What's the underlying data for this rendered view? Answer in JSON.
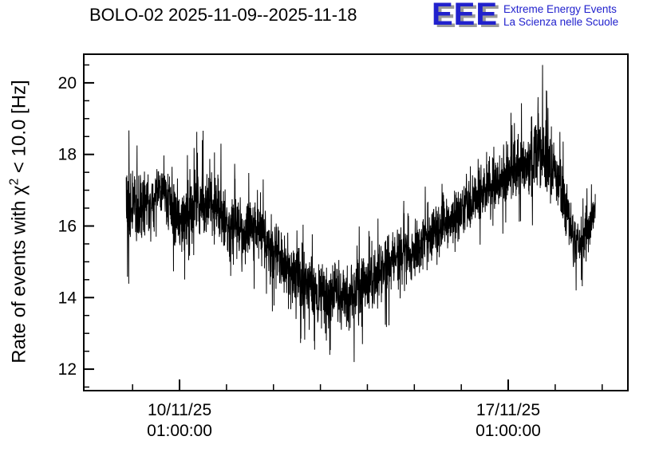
{
  "logo": {
    "acronym": "EEE",
    "line1": "Extreme Energy Events",
    "line2": "La Scienza nelle Scuole",
    "color": "#2121cd"
  },
  "chart_data": {
    "type": "line",
    "title": "BOLO-02 2025-11-09--2025-11-18",
    "ylabel_prefix": "Rate of events with χ",
    "ylabel_sup": "2",
    "ylabel_suffix": " < 10.0 [Hz]",
    "ylim": [
      11.4,
      20.8
    ],
    "y_major_ticks": [
      12,
      14,
      16,
      18,
      20
    ],
    "y_minor_step": 0.5,
    "x_major_ticks": [
      {
        "pos": 0.176,
        "date": "10/11/25",
        "time": "01:00:00"
      },
      {
        "pos": 0.78,
        "date": "17/11/25",
        "time": "01:00:00"
      }
    ],
    "x_minor_spacing": 0.0863,
    "series_color": "#000000",
    "grid": false,
    "legend": "none",
    "data_span": [
      0.078,
      0.94
    ],
    "n_points": 2600,
    "trend": [
      {
        "t": 0.078,
        "mean": 16.6,
        "spread": 1.4
      },
      {
        "t": 0.105,
        "mean": 16.3,
        "spread": 1.3
      },
      {
        "t": 0.14,
        "mean": 17.0,
        "spread": 1.0
      },
      {
        "t": 0.175,
        "mean": 16.2,
        "spread": 1.2
      },
      {
        "t": 0.215,
        "mean": 16.7,
        "spread": 1.3
      },
      {
        "t": 0.255,
        "mean": 16.3,
        "spread": 1.1
      },
      {
        "t": 0.29,
        "mean": 15.8,
        "spread": 1.1
      },
      {
        "t": 0.32,
        "mean": 15.9,
        "spread": 1.0
      },
      {
        "t": 0.355,
        "mean": 15.1,
        "spread": 1.1
      },
      {
        "t": 0.395,
        "mean": 14.5,
        "spread": 1.2
      },
      {
        "t": 0.445,
        "mean": 14.1,
        "spread": 1.2
      },
      {
        "t": 0.495,
        "mean": 14.1,
        "spread": 1.2
      },
      {
        "t": 0.54,
        "mean": 14.6,
        "spread": 1.1
      },
      {
        "t": 0.575,
        "mean": 15.2,
        "spread": 1.1
      },
      {
        "t": 0.61,
        "mean": 15.3,
        "spread": 1.0
      },
      {
        "t": 0.65,
        "mean": 15.9,
        "spread": 1.1
      },
      {
        "t": 0.7,
        "mean": 16.5,
        "spread": 1.1
      },
      {
        "t": 0.745,
        "mean": 17.1,
        "spread": 1.1
      },
      {
        "t": 0.79,
        "mean": 17.6,
        "spread": 1.1
      },
      {
        "t": 0.828,
        "mean": 17.9,
        "spread": 1.2
      },
      {
        "t": 0.848,
        "mean": 17.8,
        "spread": 1.4
      },
      {
        "t": 0.868,
        "mean": 17.5,
        "spread": 1.1
      },
      {
        "t": 0.89,
        "mean": 16.2,
        "spread": 1.0
      },
      {
        "t": 0.905,
        "mean": 15.4,
        "spread": 0.9
      },
      {
        "t": 0.92,
        "mean": 15.6,
        "spread": 0.9
      },
      {
        "t": 0.94,
        "mean": 16.5,
        "spread": 0.6
      }
    ],
    "spikes": [
      {
        "t": 0.452,
        "v": 12.4
      },
      {
        "t": 0.497,
        "v": 12.2
      },
      {
        "t": 0.512,
        "v": 12.7
      },
      {
        "t": 0.843,
        "v": 20.5
      },
      {
        "t": 0.835,
        "v": 19.6
      },
      {
        "t": 0.853,
        "v": 19.3
      },
      {
        "t": 0.218,
        "v": 18.4
      },
      {
        "t": 0.252,
        "v": 18.3
      },
      {
        "t": 0.098,
        "v": 18.25
      },
      {
        "t": 0.588,
        "v": 16.7
      },
      {
        "t": 0.905,
        "v": 14.2
      }
    ]
  }
}
